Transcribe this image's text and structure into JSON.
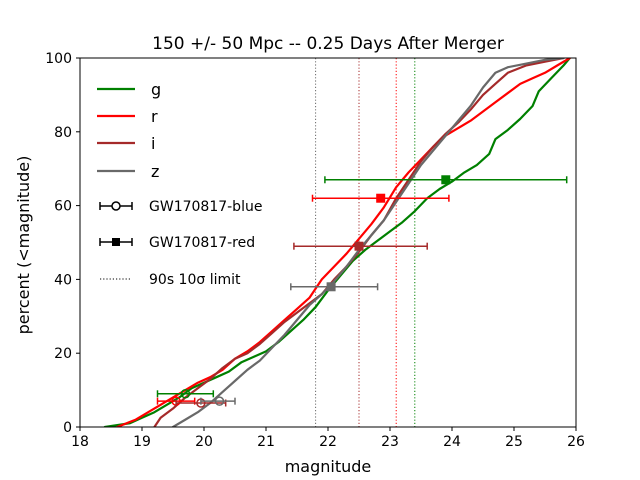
{
  "chart_data": {
    "type": "line",
    "title": "150 +/- 50 Mpc  -- 0.25 Days After Merger",
    "xlabel": "magnitude",
    "ylabel": "percent (<magnitude)",
    "xlim": [
      18,
      26
    ],
    "ylim": [
      0,
      100
    ],
    "xticks": [
      "18",
      "19",
      "20",
      "21",
      "22",
      "23",
      "24",
      "25",
      "26"
    ],
    "yticks": [
      "0",
      "20",
      "40",
      "60",
      "80",
      "100"
    ],
    "grid": false,
    "legend_placement": "upper-left",
    "series": [
      {
        "name": "g",
        "color": "#008000",
        "points": [
          [
            18.4,
            0
          ],
          [
            18.8,
            1
          ],
          [
            19.0,
            2.5
          ],
          [
            19.2,
            4
          ],
          [
            19.4,
            6
          ],
          [
            19.6,
            8
          ],
          [
            19.8,
            10.5
          ],
          [
            20.0,
            12
          ],
          [
            20.2,
            13.5
          ],
          [
            20.4,
            15
          ],
          [
            20.6,
            17.5
          ],
          [
            20.8,
            19
          ],
          [
            21.0,
            20.5
          ],
          [
            21.2,
            23
          ],
          [
            21.4,
            26
          ],
          [
            21.6,
            29
          ],
          [
            21.8,
            32.5
          ],
          [
            22.0,
            37
          ],
          [
            22.2,
            41
          ],
          [
            22.4,
            45
          ],
          [
            22.6,
            48
          ],
          [
            22.8,
            50.5
          ],
          [
            23.0,
            53
          ],
          [
            23.2,
            55.5
          ],
          [
            23.4,
            58.5
          ],
          [
            23.6,
            62
          ],
          [
            23.8,
            64.5
          ],
          [
            24.0,
            66.5
          ],
          [
            24.2,
            69
          ],
          [
            24.4,
            71
          ],
          [
            24.6,
            74
          ],
          [
            24.7,
            78
          ],
          [
            24.9,
            80.5
          ],
          [
            25.1,
            83.5
          ],
          [
            25.3,
            87
          ],
          [
            25.4,
            91
          ],
          [
            25.6,
            94.5
          ],
          [
            25.8,
            98
          ],
          [
            25.9,
            100
          ]
        ]
      },
      {
        "name": "r",
        "color": "#ff0000",
        "points": [
          [
            18.6,
            0
          ],
          [
            18.9,
            2
          ],
          [
            19.1,
            4
          ],
          [
            19.3,
            6
          ],
          [
            19.5,
            8
          ],
          [
            19.7,
            10
          ],
          [
            19.9,
            12
          ],
          [
            20.1,
            13.5
          ],
          [
            20.3,
            15.5
          ],
          [
            20.5,
            18.5
          ],
          [
            20.7,
            20.5
          ],
          [
            20.9,
            23
          ],
          [
            21.1,
            26
          ],
          [
            21.3,
            29
          ],
          [
            21.5,
            32
          ],
          [
            21.7,
            35
          ],
          [
            21.9,
            40
          ],
          [
            22.1,
            43.5
          ],
          [
            22.3,
            47
          ],
          [
            22.5,
            51
          ],
          [
            22.7,
            55
          ],
          [
            22.9,
            59.5
          ],
          [
            23.1,
            65
          ],
          [
            23.3,
            69
          ],
          [
            23.5,
            72.5
          ],
          [
            23.7,
            76
          ],
          [
            23.9,
            79
          ],
          [
            24.1,
            81
          ],
          [
            24.3,
            83
          ],
          [
            24.5,
            85.5
          ],
          [
            24.7,
            88
          ],
          [
            24.9,
            90.5
          ],
          [
            25.1,
            93
          ],
          [
            25.3,
            94.5
          ],
          [
            25.5,
            96
          ],
          [
            25.7,
            98
          ],
          [
            25.9,
            100
          ]
        ]
      },
      {
        "name": "i",
        "color": "#a52a2a",
        "points": [
          [
            19.2,
            0
          ],
          [
            19.3,
            2.5
          ],
          [
            19.5,
            5
          ],
          [
            19.7,
            8
          ],
          [
            19.9,
            10.5
          ],
          [
            20.1,
            13
          ],
          [
            20.3,
            16
          ],
          [
            20.5,
            18.5
          ],
          [
            20.7,
            20
          ],
          [
            20.9,
            22.5
          ],
          [
            21.1,
            25.5
          ],
          [
            21.3,
            28.5
          ],
          [
            21.5,
            31
          ],
          [
            21.7,
            33.5
          ],
          [
            21.9,
            36
          ],
          [
            22.1,
            40
          ],
          [
            22.3,
            43.5
          ],
          [
            22.5,
            47.5
          ],
          [
            22.7,
            52
          ],
          [
            22.9,
            56
          ],
          [
            23.1,
            62
          ],
          [
            23.3,
            67
          ],
          [
            23.5,
            72
          ],
          [
            23.7,
            76
          ],
          [
            23.9,
            79.5
          ],
          [
            24.1,
            82.5
          ],
          [
            24.3,
            86
          ],
          [
            24.5,
            90
          ],
          [
            24.7,
            93
          ],
          [
            24.9,
            96
          ],
          [
            25.2,
            98
          ],
          [
            25.5,
            99
          ],
          [
            25.8,
            100
          ]
        ]
      },
      {
        "name": "z",
        "color": "#696969",
        "points": [
          [
            19.5,
            0
          ],
          [
            19.7,
            2
          ],
          [
            19.9,
            4
          ],
          [
            20.1,
            6.5
          ],
          [
            20.3,
            9.5
          ],
          [
            20.5,
            12.5
          ],
          [
            20.7,
            15.5
          ],
          [
            20.9,
            18
          ],
          [
            21.1,
            21.5
          ],
          [
            21.3,
            25
          ],
          [
            21.5,
            29
          ],
          [
            21.7,
            33
          ],
          [
            21.9,
            36
          ],
          [
            22.1,
            39.5
          ],
          [
            22.3,
            43.5
          ],
          [
            22.5,
            48
          ],
          [
            22.7,
            52
          ],
          [
            22.9,
            56
          ],
          [
            23.1,
            61
          ],
          [
            23.3,
            66
          ],
          [
            23.5,
            71
          ],
          [
            23.7,
            75
          ],
          [
            23.9,
            79
          ],
          [
            24.1,
            83
          ],
          [
            24.3,
            87
          ],
          [
            24.5,
            92
          ],
          [
            24.7,
            96
          ],
          [
            24.9,
            97.5
          ],
          [
            25.2,
            98.5
          ],
          [
            25.5,
            99.5
          ],
          [
            25.8,
            100
          ]
        ]
      }
    ],
    "limits": {
      "name": "90s 10σ limit",
      "lines": [
        {
          "band": "g",
          "x": 23.4,
          "color": "#008000"
        },
        {
          "band": "r",
          "x": 23.1,
          "color": "#ff0000"
        },
        {
          "band": "i",
          "x": 22.5,
          "color": "#a52a2a"
        },
        {
          "band": "z",
          "x": 21.8,
          "color": "#696969"
        }
      ]
    },
    "markers": [
      {
        "group": "GW170817-blue",
        "shape": "circle",
        "band": "g",
        "color": "#008000",
        "x": 19.7,
        "y": 9,
        "xerr": [
          19.25,
          20.15
        ]
      },
      {
        "group": "GW170817-blue",
        "shape": "circle",
        "band": "r",
        "color": "#ff0000",
        "x": 19.55,
        "y": 7,
        "xerr": [
          19.25,
          19.85
        ]
      },
      {
        "group": "GW170817-blue",
        "shape": "circle",
        "band": "i",
        "color": "#a52a2a",
        "x": 19.95,
        "y": 6.5,
        "xerr": [
          19.55,
          20.35
        ]
      },
      {
        "group": "GW170817-blue",
        "shape": "circle",
        "band": "z",
        "color": "#696969",
        "x": 20.25,
        "y": 7,
        "xerr": [
          19.95,
          20.5
        ]
      },
      {
        "group": "GW170817-red",
        "shape": "square",
        "band": "g",
        "color": "#008000",
        "x": 23.9,
        "y": 67,
        "xerr": [
          21.95,
          25.85
        ]
      },
      {
        "group": "GW170817-red",
        "shape": "square",
        "band": "r",
        "color": "#ff0000",
        "x": 22.85,
        "y": 62,
        "xerr": [
          21.75,
          23.95
        ]
      },
      {
        "group": "GW170817-red",
        "shape": "square",
        "band": "i",
        "color": "#a52a2a",
        "x": 22.5,
        "y": 49,
        "xerr": [
          21.45,
          23.6
        ]
      },
      {
        "group": "GW170817-red",
        "shape": "square",
        "band": "z",
        "color": "#696969",
        "x": 22.05,
        "y": 38,
        "xerr": [
          21.4,
          22.8
        ]
      }
    ],
    "legend": [
      {
        "label": "g",
        "kind": "line",
        "color": "#008000"
      },
      {
        "label": "r",
        "kind": "line",
        "color": "#ff0000"
      },
      {
        "label": "i",
        "kind": "line",
        "color": "#a52a2a"
      },
      {
        "label": "z",
        "kind": "line",
        "color": "#696969"
      },
      {
        "label": "GW170817-blue",
        "kind": "errorbar-circle",
        "color": "#000000"
      },
      {
        "label": "GW170817-red",
        "kind": "errorbar-square",
        "color": "#000000"
      },
      {
        "label": "90s 10σ limit",
        "kind": "dotted",
        "color": "#000000"
      }
    ]
  }
}
